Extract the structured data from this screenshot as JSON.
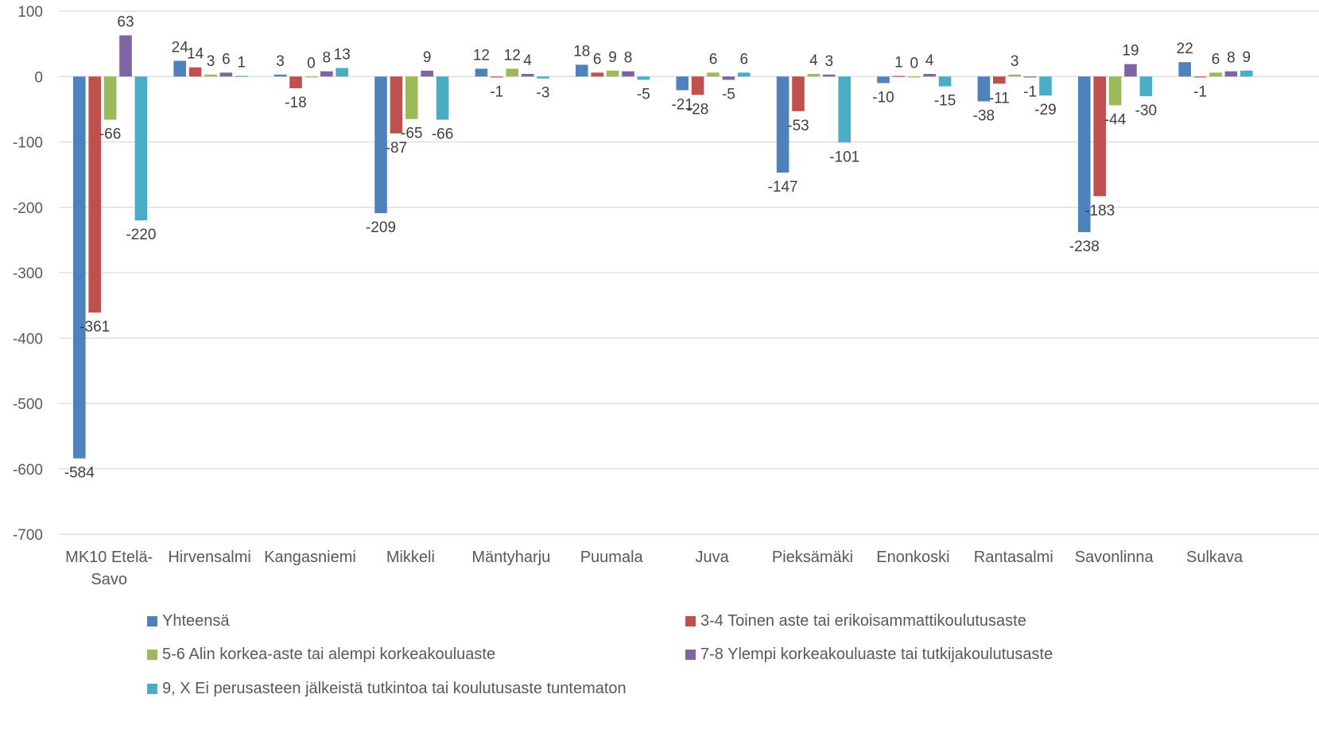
{
  "chart_data": {
    "type": "bar",
    "categories": [
      "MK10 Etelä-Savo",
      "Hirvensalmi",
      "Kangasniemi",
      "Mikkeli",
      "Mäntyharju",
      "Puumala",
      "Juva",
      "Pieksämäki",
      "Enonkoski",
      "Rantasalmi",
      "Savonlinna",
      "Sulkava"
    ],
    "category_lines": [
      [
        "MK10 Etelä-",
        "Savo"
      ],
      [
        "Hirvensalmi"
      ],
      [
        "Kangasniemi"
      ],
      [
        "Mikkeli"
      ],
      [
        "Mäntyharju"
      ],
      [
        "Puumala"
      ],
      [
        "Juva"
      ],
      [
        "Pieksämäki"
      ],
      [
        "Enonkoski"
      ],
      [
        "Rantasalmi"
      ],
      [
        "Savonlinna"
      ],
      [
        "Sulkava"
      ]
    ],
    "series": [
      {
        "name": "Yhteensä",
        "color": "#4f81bd",
        "values": [
          -584,
          24,
          3,
          -209,
          12,
          18,
          -21,
          -147,
          -10,
          -38,
          -238,
          22
        ],
        "labels": [
          "-584",
          "24",
          "3",
          "-209",
          "12",
          "18",
          "-21",
          "-147",
          "-10",
          "-38",
          "-238",
          "22"
        ]
      },
      {
        "name": "3-4 Toinen aste tai erikoisammattikoulutusaste",
        "color": "#c0504d",
        "values": [
          -361,
          14,
          -18,
          -87,
          -1,
          6,
          -28,
          -53,
          1,
          -11,
          -183,
          -1
        ],
        "labels": [
          "-361",
          "14",
          "-18",
          "-87",
          "-1",
          "6",
          "-28",
          "-53",
          "1",
          "-11",
          "-183",
          "-1"
        ]
      },
      {
        "name": "5-6 Alin korkea-aste tai alempi korkeakouluaste",
        "color": "#9bbb59",
        "values": [
          -66,
          3,
          0,
          -65,
          12,
          9,
          6,
          4,
          0,
          3,
          -44,
          6
        ],
        "labels": [
          "-66",
          "3",
          "0",
          "-65",
          "12",
          "9",
          "6",
          "4",
          "0",
          "3",
          "-44",
          "6"
        ]
      },
      {
        "name": "7-8 Ylempi korkeakouluaste tai tutkijakoulutusaste",
        "color": "#8064a2",
        "values": [
          63,
          6,
          8,
          9,
          4,
          8,
          -5,
          3,
          4,
          -1,
          19,
          8
        ],
        "labels": [
          "63",
          "6",
          "8",
          "9",
          "4",
          "8",
          "-5",
          "3",
          "4",
          "-1",
          "19",
          "8"
        ]
      },
      {
        "name": "9, X Ei perusasteen jälkeistä tutkintoa tai koulutusaste tuntematon",
        "color": "#4bacc6",
        "values": [
          -220,
          1,
          13,
          -66,
          -3,
          -5,
          6,
          -101,
          -15,
          -29,
          -30,
          9
        ],
        "labels": [
          "-220",
          "1",
          "13",
          "-66",
          "-3",
          "-5",
          "6",
          "-101",
          "-15",
          "-29",
          "-30",
          "9"
        ]
      }
    ],
    "ylim": [
      -700,
      100
    ],
    "yticks": [
      "100",
      "0",
      "-100",
      "-200",
      "-300",
      "-400",
      "-500",
      "-600",
      "-700"
    ],
    "grid": true,
    "legend_position": "bottom"
  }
}
